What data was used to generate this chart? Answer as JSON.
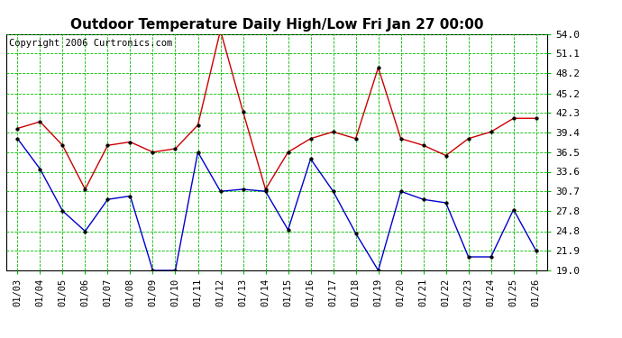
{
  "title": "Outdoor Temperature Daily High/Low Fri Jan 27 00:00",
  "copyright": "Copyright 2006 Curtronics.com",
  "dates": [
    "01/03",
    "01/04",
    "01/05",
    "01/06",
    "01/07",
    "01/08",
    "01/09",
    "01/10",
    "01/11",
    "01/12",
    "01/13",
    "01/14",
    "01/15",
    "01/16",
    "01/17",
    "01/18",
    "01/19",
    "01/20",
    "01/21",
    "01/22",
    "01/23",
    "01/24",
    "01/25",
    "01/26"
  ],
  "high_temps": [
    40.0,
    41.0,
    37.5,
    31.0,
    37.5,
    38.0,
    36.5,
    37.0,
    40.5,
    54.5,
    42.5,
    31.0,
    36.5,
    38.5,
    39.5,
    38.5,
    49.0,
    38.5,
    37.5,
    36.0,
    38.5,
    39.5,
    41.5,
    41.5
  ],
  "low_temps": [
    38.5,
    34.0,
    27.8,
    24.8,
    29.5,
    30.0,
    19.0,
    19.0,
    36.5,
    30.7,
    31.0,
    30.7,
    25.0,
    35.5,
    30.7,
    24.5,
    19.0,
    30.7,
    29.5,
    29.0,
    21.0,
    21.0,
    28.0,
    21.9
  ],
  "y_ticks": [
    19.0,
    21.9,
    24.8,
    27.8,
    30.7,
    33.6,
    36.5,
    39.4,
    42.3,
    45.2,
    48.2,
    51.1,
    54.0
  ],
  "y_min": 19.0,
  "y_max": 54.0,
  "high_color": "#cc0000",
  "low_color": "#0000cc",
  "bg_color": "#ffffff",
  "plot_bg_color": "#ffffff",
  "grid_color": "#00bb00",
  "title_fontsize": 11,
  "copyright_fontsize": 7.5,
  "tick_fontsize": 7.5,
  "ytick_fontsize": 8
}
